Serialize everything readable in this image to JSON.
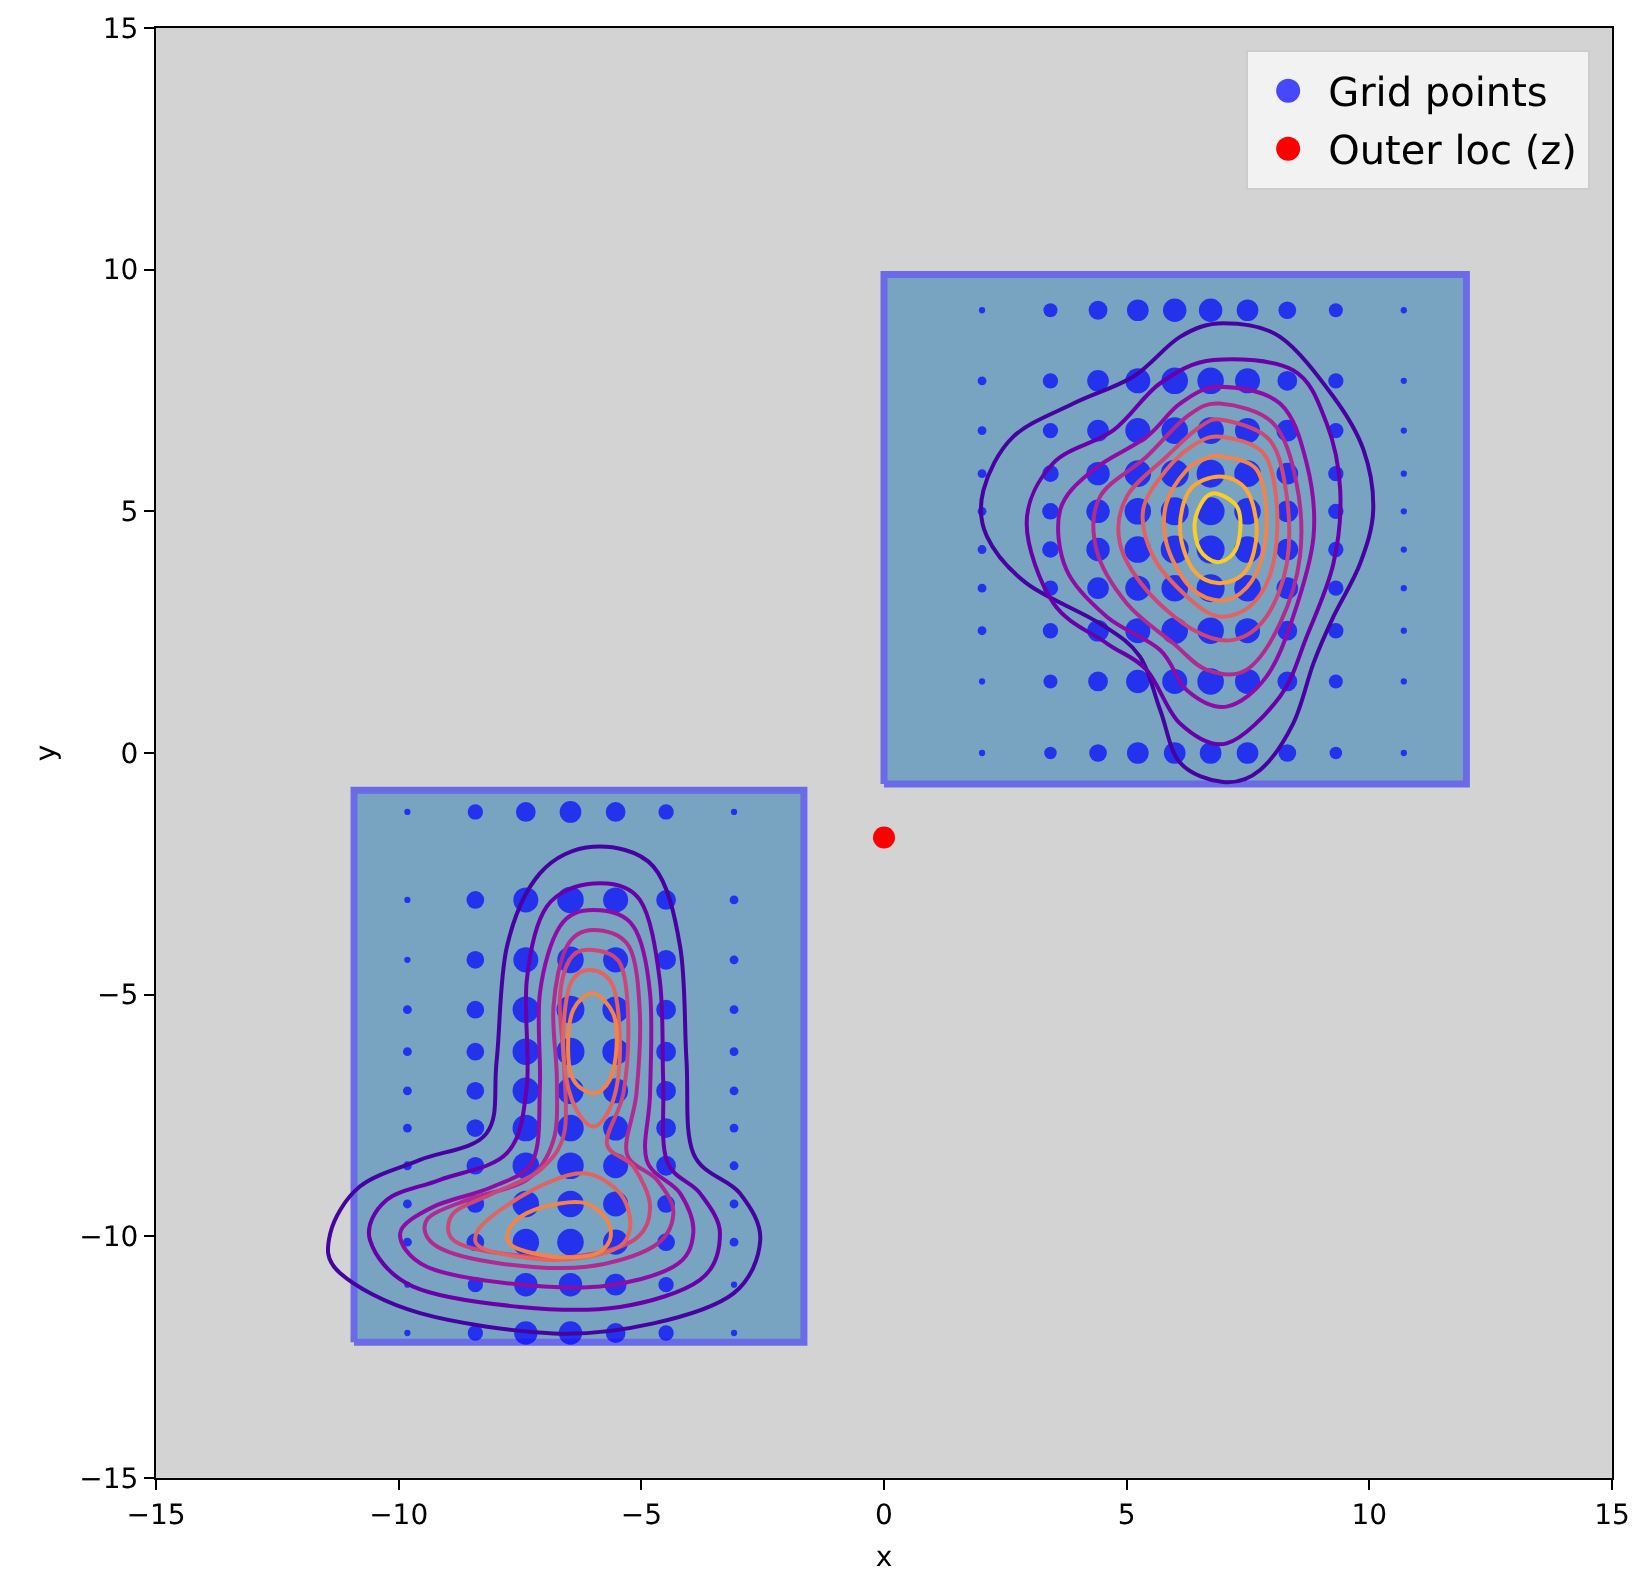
{
  "chart_data": {
    "type": "scatter",
    "xlabel": "x",
    "ylabel": "y",
    "xlim": [
      -15,
      15
    ],
    "ylim": [
      -15,
      15
    ],
    "xticks": [
      {
        "value": -15,
        "label": "−15"
      },
      {
        "value": -10,
        "label": "−10"
      },
      {
        "value": -5,
        "label": "−5"
      },
      0,
      5,
      10,
      15
    ],
    "yticks": [
      {
        "value": -15,
        "label": "−15"
      },
      {
        "value": -10,
        "label": "−10"
      },
      {
        "value": -5,
        "label": "−5"
      },
      0,
      5,
      10,
      15
    ],
    "grid": false,
    "legend": "top right",
    "series": [
      {
        "type": "area",
        "color": "#78a4c2",
        "x": [
          0,
          12,
          12,
          0,
          0
        ],
        "values": [
          -0.64,
          -0.64,
          9.9,
          9.9,
          -0.64
        ]
      },
      {
        "type": "area",
        "color": "#78a4c2",
        "x": [
          -10.92,
          -1.65,
          -1.65,
          -10.92,
          -10.92
        ],
        "values": [
          -12.19,
          -12.19,
          -0.77,
          -0.77,
          -12.19
        ]
      },
      {
        "type": "bubble",
        "name": "Grid points",
        "color": "#0000ff",
        "marker": "circle",
        "x": [
          2.02,
          3.43,
          4.41,
          5.23,
          5.99,
          6.73,
          7.49,
          8.31,
          9.31,
          10.71,
          2.02,
          3.43,
          4.41,
          5.23,
          5.99,
          6.73,
          7.49,
          8.31,
          9.31,
          10.71,
          2.02,
          3.43,
          4.41,
          5.23,
          5.99,
          6.73,
          7.49,
          8.31,
          9.31,
          10.71,
          2.02,
          3.43,
          4.41,
          5.23,
          5.99,
          6.73,
          7.49,
          8.31,
          9.31,
          10.71,
          2.02,
          3.43,
          4.41,
          5.23,
          5.99,
          6.73,
          7.49,
          8.31,
          9.31,
          10.71,
          2.02,
          3.43,
          4.41,
          5.23,
          5.99,
          6.73,
          7.49,
          8.31,
          9.31,
          10.71,
          2.02,
          3.43,
          4.41,
          5.23,
          5.99,
          6.73,
          7.49,
          8.31,
          9.31,
          10.71,
          2.02,
          3.43,
          4.41,
          5.23,
          5.99,
          6.73,
          7.49,
          8.31,
          9.31,
          10.71,
          2.02,
          3.43,
          4.41,
          5.23,
          5.99,
          6.73,
          7.49,
          8.31,
          9.31,
          10.71,
          2.02,
          3.43,
          4.41,
          5.23,
          5.99,
          6.73,
          7.49,
          8.31,
          9.31,
          10.71,
          -9.82,
          -8.42,
          -7.38,
          -6.46,
          -5.53,
          -4.49,
          -3.09,
          -9.82,
          -8.42,
          -7.38,
          -6.46,
          -5.53,
          -4.49,
          -3.09,
          -9.82,
          -8.42,
          -7.38,
          -6.46,
          -5.53,
          -4.49,
          -3.09,
          -9.82,
          -8.42,
          -7.38,
          -6.46,
          -5.53,
          -4.49,
          -3.09,
          -9.82,
          -8.42,
          -7.38,
          -6.46,
          -5.53,
          -4.49,
          -3.09,
          -9.82,
          -8.42,
          -7.38,
          -6.46,
          -5.53,
          -4.49,
          -3.09,
          -9.82,
          -8.42,
          -7.38,
          -6.46,
          -5.53,
          -4.49,
          -3.09,
          -9.82,
          -8.42,
          -7.38,
          -6.46,
          -5.53,
          -4.49,
          -3.09,
          -9.82,
          -8.42,
          -7.38,
          -6.46,
          -5.53,
          -4.49,
          -3.09,
          -9.82,
          -8.42,
          -7.38,
          -6.46,
          -5.53,
          -4.49,
          -3.09,
          -9.82,
          -8.42,
          -7.38,
          -6.46,
          -5.53,
          -4.49,
          -3.09,
          -9.82,
          -8.42,
          -7.38,
          -6.46,
          -5.53,
          -4.49,
          -3.09
        ],
        "values": [
          9.16,
          9.16,
          9.16,
          9.16,
          9.16,
          9.16,
          9.16,
          9.16,
          9.16,
          9.16,
          7.7,
          7.7,
          7.7,
          7.7,
          7.7,
          7.7,
          7.7,
          7.7,
          7.7,
          7.7,
          6.67,
          6.67,
          6.67,
          6.67,
          6.67,
          6.67,
          6.67,
          6.67,
          6.67,
          6.67,
          5.78,
          5.78,
          5.78,
          5.78,
          5.78,
          5.78,
          5.78,
          5.78,
          5.78,
          5.78,
          5.0,
          5.0,
          5.0,
          5.0,
          5.0,
          5.0,
          5.0,
          5.0,
          5.0,
          5.0,
          4.21,
          4.21,
          4.21,
          4.21,
          4.21,
          4.21,
          4.21,
          4.21,
          4.21,
          4.21,
          3.41,
          3.41,
          3.41,
          3.41,
          3.41,
          3.41,
          3.41,
          3.41,
          3.41,
          3.41,
          2.53,
          2.53,
          2.53,
          2.53,
          2.53,
          2.53,
          2.53,
          2.53,
          2.53,
          2.53,
          1.48,
          1.48,
          1.48,
          1.48,
          1.48,
          1.48,
          1.48,
          1.48,
          1.48,
          1.48,
          0,
          0,
          0,
          0,
          0,
          0,
          0,
          0,
          0,
          0,
          -1.22,
          -1.22,
          -1.22,
          -1.22,
          -1.22,
          -1.22,
          -1.22,
          -3.04,
          -3.04,
          -3.04,
          -3.04,
          -3.04,
          -3.04,
          -3.04,
          -4.28,
          -4.28,
          -4.28,
          -4.28,
          -4.28,
          -4.28,
          -4.28,
          -5.31,
          -5.31,
          -5.31,
          -5.31,
          -5.31,
          -5.31,
          -5.31,
          -6.18,
          -6.18,
          -6.18,
          -6.18,
          -6.18,
          -6.18,
          -6.18,
          -6.99,
          -6.99,
          -6.99,
          -6.99,
          -6.99,
          -6.99,
          -6.99,
          -7.76,
          -7.76,
          -7.76,
          -7.76,
          -7.76,
          -7.76,
          -7.76,
          -8.54,
          -8.54,
          -8.54,
          -8.54,
          -8.54,
          -8.54,
          -8.54,
          -9.33,
          -9.33,
          -9.33,
          -9.33,
          -9.33,
          -9.33,
          -9.33,
          -10.12,
          -10.12,
          -10.12,
          -10.12,
          -10.12,
          -10.12,
          -10.12,
          -11.0,
          -11.0,
          -11.0,
          -11.0,
          -11.0,
          -11.0,
          -11.0,
          -12.0,
          -12.0,
          -12.0,
          -12.0,
          -12.0,
          -12.0,
          -12.0
        ],
        "sizes": [
          0.05,
          0.25,
          0.45,
          0.6,
          0.7,
          0.7,
          0.6,
          0.4,
          0.25,
          0.05,
          0.1,
          0.3,
          0.6,
          0.8,
          0.9,
          0.9,
          0.8,
          0.5,
          0.3,
          0.05,
          0.1,
          0.3,
          0.6,
          0.8,
          0.9,
          0.9,
          0.8,
          0.6,
          0.3,
          0.05,
          0.1,
          0.35,
          0.7,
          0.9,
          1,
          1,
          0.9,
          0.6,
          0.3,
          0.05,
          0.1,
          0.35,
          0.7,
          0.9,
          1,
          1,
          0.9,
          0.6,
          0.3,
          0.05,
          0.1,
          0.35,
          0.7,
          0.9,
          1,
          1,
          0.9,
          0.6,
          0.3,
          0.05,
          0.1,
          0.3,
          0.6,
          0.8,
          0.9,
          1,
          0.9,
          0.6,
          0.3,
          0.05,
          0.1,
          0.3,
          0.6,
          0.8,
          0.9,
          0.9,
          0.8,
          0.5,
          0.3,
          0.05,
          0.05,
          0.25,
          0.5,
          0.7,
          0.8,
          0.9,
          0.8,
          0.5,
          0.25,
          0.05,
          0.05,
          0.2,
          0.4,
          0.6,
          0.6,
          0.6,
          0.6,
          0.4,
          0.2,
          0.05,
          0.05,
          0.3,
          0.5,
          0.6,
          0.5,
          0.3,
          0.05,
          0.05,
          0.4,
          0.8,
          0.9,
          0.8,
          0.5,
          0.1,
          0.05,
          0.4,
          0.8,
          0.9,
          0.8,
          0.5,
          0.1,
          0.1,
          0.4,
          0.9,
          1,
          0.9,
          0.5,
          0.1,
          0.1,
          0.4,
          0.9,
          1,
          0.9,
          0.5,
          0.1,
          0.1,
          0.4,
          0.9,
          0.9,
          0.8,
          0.5,
          0.1,
          0.1,
          0.4,
          0.9,
          0.9,
          0.8,
          0.5,
          0.1,
          0.1,
          0.4,
          0.9,
          0.9,
          0.8,
          0.5,
          0.1,
          0.1,
          0.4,
          0.9,
          0.9,
          0.8,
          0.4,
          0.1,
          0.1,
          0.4,
          0.9,
          0.9,
          0.8,
          0.4,
          0.1,
          0.05,
          0.3,
          0.7,
          0.7,
          0.6,
          0.3,
          0.05,
          0.05,
          0.3,
          0.7,
          0.7,
          0.5,
          0.3,
          0.05
        ]
      },
      {
        "name": "Outer loc (z)",
        "color": "#ff0000",
        "marker": "circle",
        "x": [
          0
        ],
        "values": [
          -1.75
        ]
      }
    ]
  }
}
